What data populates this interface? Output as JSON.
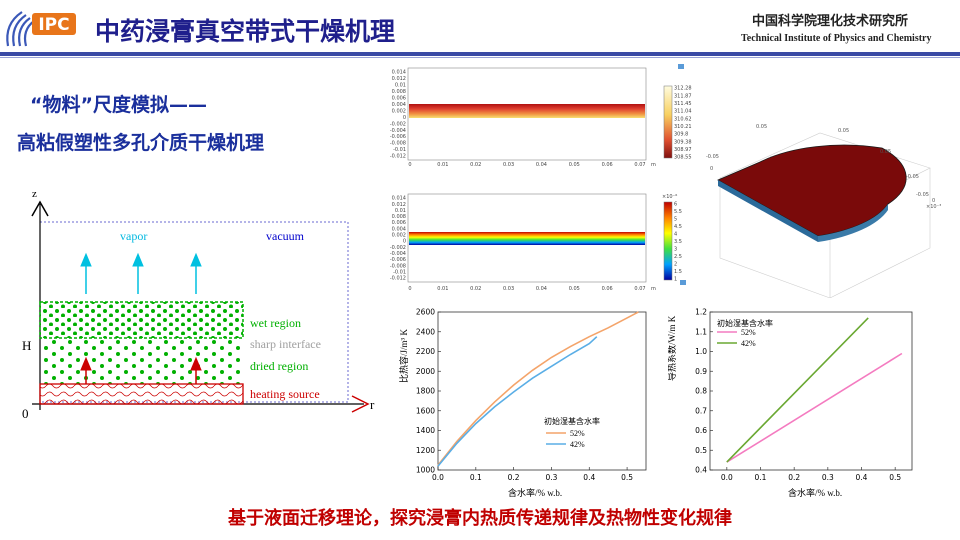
{
  "header": {
    "logo_text": "IPC",
    "title": "中药浸膏真空带式干燥机理",
    "institute_cn": "中国科学院理化技术研究所",
    "institute_en": "Technical Institute of Physics and Chemistry"
  },
  "subtitle": {
    "line1": "“物料”尺度模拟——",
    "line2": "高粘假塑性多孔介质干燥机理"
  },
  "schematic": {
    "z_axis": "z",
    "r_axis": "r",
    "h_label": "H",
    "origin_label": "0",
    "vapor": "vapor",
    "vacuum": "vacuum",
    "wet_region": "wet region",
    "sharp_interface": "sharp interface",
    "dried_region": "dried region",
    "heating_source": "heating  source",
    "colors": {
      "wet": "#00b000",
      "interface": "#a0a0a0",
      "heat": "#cc0000",
      "vapor": "#00c0e0",
      "vacuum": "#0000cc"
    }
  },
  "sim_top": {
    "y_ticks": [
      "0.014",
      "0.012",
      "0.01",
      "0.008",
      "0.006",
      "0.004",
      "0.002",
      "0",
      "-0.002",
      "-0.004",
      "-0.006",
      "-0.008",
      "-0.01",
      "-0.012"
    ],
    "x_ticks": [
      "0",
      "0.01",
      "0.02",
      "0.03",
      "0.04",
      "0.05",
      "0.06",
      "0.07"
    ],
    "x_unit": "m",
    "colorbar": [
      "312.28",
      "311.87",
      "311.45",
      "311.04",
      "310.62",
      "310.21",
      "309.8",
      "309.38",
      "308.97",
      "308.55"
    ]
  },
  "sim_bottom": {
    "y_ticks": [
      "0.014",
      "0.012",
      "0.01",
      "0.008",
      "0.006",
      "0.004",
      "0.002",
      "0",
      "-0.002",
      "-0.004",
      "-0.006",
      "-0.008",
      "-0.01",
      "-0.012"
    ],
    "x_ticks": [
      "0",
      "0.01",
      "0.02",
      "0.03",
      "0.04",
      "0.05",
      "0.06",
      "0.07"
    ],
    "x_unit": "m",
    "exponent": "×10⁻⁶",
    "colorbar": [
      "6",
      "5.5",
      "5",
      "4.5",
      "4",
      "3.5",
      "3",
      "2.5",
      "2",
      "1.5",
      "1"
    ]
  },
  "render3d": {
    "tick_labels": [
      "0.05",
      "0.05",
      "-0.05",
      "0",
      "-0.05",
      "-0.05",
      "0.05",
      "0",
      "×10⁻³"
    ]
  },
  "chart_data": [
    {
      "type": "line",
      "ylabel": "比热容/J/m³ K",
      "xlabel": "含水率/% w.b.",
      "legend_title": "初始湿基含水率",
      "xlim": [
        0,
        0.55
      ],
      "ylim": [
        1000,
        2600
      ],
      "x_ticks": [
        "0.0",
        "0.1",
        "0.2",
        "0.3",
        "0.4",
        "0.5"
      ],
      "y_ticks": [
        "1000",
        "1200",
        "1400",
        "1600",
        "1800",
        "2000",
        "2200",
        "2400",
        "2600"
      ],
      "series": [
        {
          "name": "52%",
          "color": "#f4a46a",
          "x": [
            0,
            0.05,
            0.1,
            0.15,
            0.2,
            0.25,
            0.3,
            0.35,
            0.4,
            0.45,
            0.5,
            0.53
          ],
          "y": [
            1050,
            1290,
            1500,
            1690,
            1860,
            2010,
            2140,
            2250,
            2350,
            2440,
            2540,
            2600
          ]
        },
        {
          "name": "42%",
          "color": "#5aaee6",
          "x": [
            0,
            0.05,
            0.1,
            0.15,
            0.2,
            0.25,
            0.3,
            0.35,
            0.4,
            0.42
          ],
          "y": [
            1040,
            1270,
            1470,
            1640,
            1790,
            1930,
            2050,
            2170,
            2280,
            2350
          ]
        }
      ]
    },
    {
      "type": "line",
      "ylabel": "导热系数/W/m K",
      "xlabel": "含水率/% w.b.",
      "legend_title": "初始湿基含水率",
      "xlim": [
        -0.05,
        0.55
      ],
      "ylim": [
        0.4,
        1.2
      ],
      "x_ticks": [
        "0.0",
        "0.1",
        "0.2",
        "0.3",
        "0.4",
        "0.5"
      ],
      "y_ticks": [
        "0.4",
        "0.5",
        "0.6",
        "0.7",
        "0.8",
        "0.9",
        "1.0",
        "1.1",
        "1.2"
      ],
      "series": [
        {
          "name": "52%",
          "color": "#f47bc0",
          "x": [
            0,
            0.52
          ],
          "y": [
            0.44,
            0.99
          ]
        },
        {
          "name": "42%",
          "color": "#6aa832",
          "x": [
            0,
            0.42
          ],
          "y": [
            0.44,
            1.17
          ]
        }
      ]
    }
  ],
  "footer": {
    "text": "基于液面迁移理论，探究浸膏内热质传递规律及热物性变化规律"
  }
}
